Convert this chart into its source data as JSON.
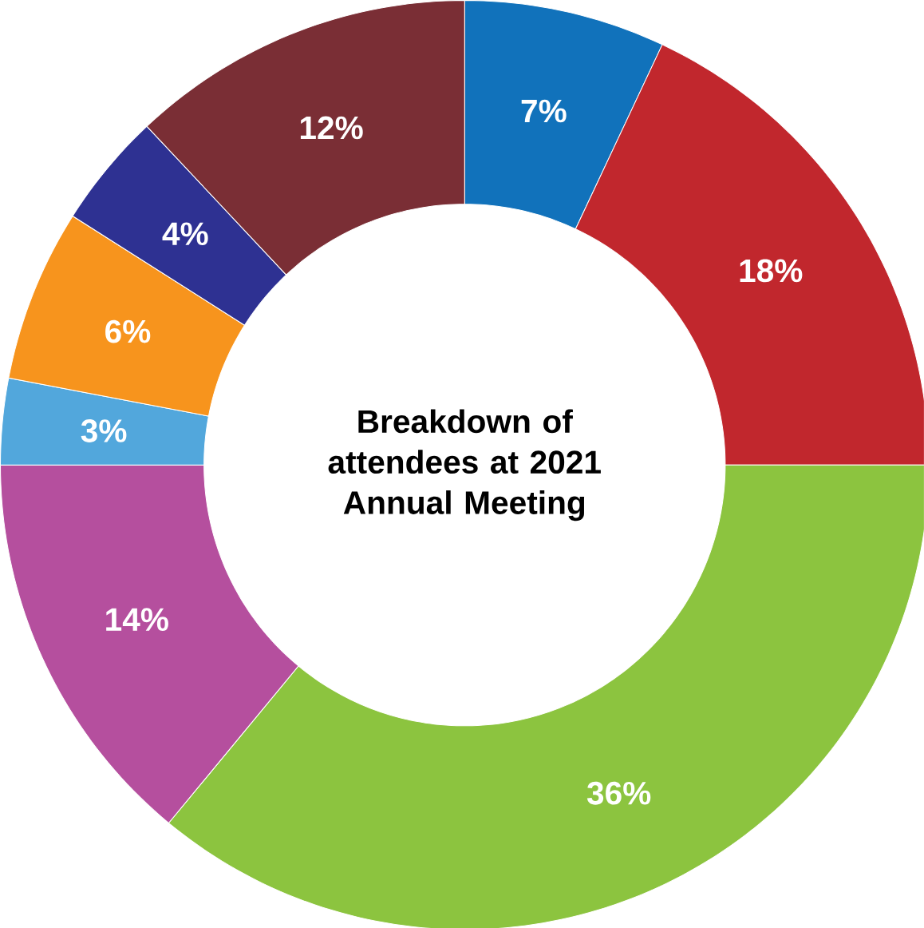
{
  "chart_data": {
    "type": "donut",
    "title": "Breakdown of attendees at 2021 Annual Meeting",
    "categories": [
      null,
      null,
      null,
      null,
      null,
      null,
      null,
      null
    ],
    "values": [
      7,
      18,
      36,
      14,
      3,
      6,
      4,
      12
    ],
    "value_labels": [
      "7%",
      "18%",
      "36%",
      "14%",
      "3%",
      "6%",
      "4%",
      "12%"
    ],
    "colors": [
      "#1172bb",
      "#c1272d",
      "#8cc43f",
      "#b54f9e",
      "#52a7dc",
      "#f7941d",
      "#2e3192",
      "#7a2e35"
    ]
  }
}
